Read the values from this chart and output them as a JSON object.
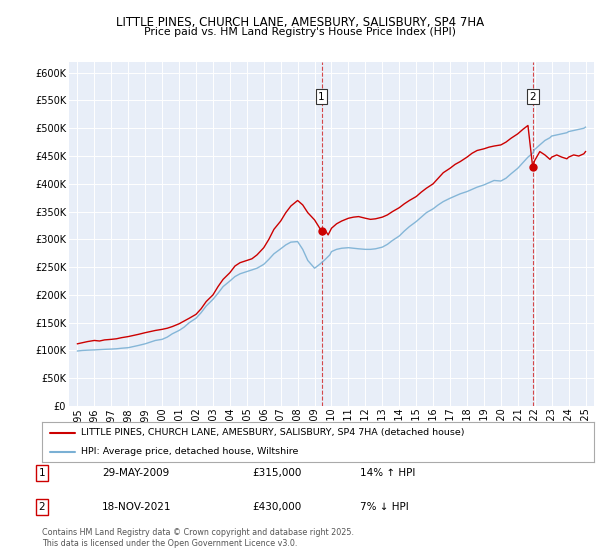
{
  "title": "LITTLE PINES, CHURCH LANE, AMESBURY, SALISBURY, SP4 7HA",
  "subtitle": "Price paid vs. HM Land Registry's House Price Index (HPI)",
  "red_label": "LITTLE PINES, CHURCH LANE, AMESBURY, SALISBURY, SP4 7HA (detached house)",
  "blue_label": "HPI: Average price, detached house, Wiltshire",
  "annotation1_date": "29-MAY-2009",
  "annotation1_price": "£315,000",
  "annotation1_hpi": "14% ↑ HPI",
  "annotation2_date": "18-NOV-2021",
  "annotation2_price": "£430,000",
  "annotation2_hpi": "7% ↓ HPI",
  "vline1_x": 2009.41,
  "vline2_x": 2021.88,
  "point1_x": 2009.41,
  "point1_y": 315000,
  "point2_x": 2021.88,
  "point2_y": 430000,
  "red_color": "#cc0000",
  "blue_color": "#7ab0d4",
  "background_color": "#e8eef8",
  "grid_color": "#ffffff",
  "ylim": [
    0,
    620000
  ],
  "xlim": [
    1994.5,
    2025.5
  ],
  "footer": "Contains HM Land Registry data © Crown copyright and database right 2025.\nThis data is licensed under the Open Government Licence v3.0.",
  "red_line_x": [
    1995.0,
    1995.3,
    1995.6,
    1996.0,
    1996.3,
    1996.6,
    1997.0,
    1997.3,
    1997.6,
    1998.0,
    1998.3,
    1998.6,
    1999.0,
    1999.3,
    1999.6,
    2000.0,
    2000.3,
    2000.6,
    2001.0,
    2001.3,
    2001.6,
    2002.0,
    2002.3,
    2002.6,
    2003.0,
    2003.3,
    2003.6,
    2004.0,
    2004.3,
    2004.6,
    2005.0,
    2005.3,
    2005.6,
    2006.0,
    2006.3,
    2006.6,
    2007.0,
    2007.3,
    2007.6,
    2008.0,
    2008.3,
    2008.6,
    2009.0,
    2009.41,
    2009.6,
    2009.8,
    2010.0,
    2010.3,
    2010.6,
    2011.0,
    2011.3,
    2011.6,
    2012.0,
    2012.3,
    2012.6,
    2013.0,
    2013.3,
    2013.6,
    2014.0,
    2014.3,
    2014.6,
    2015.0,
    2015.3,
    2015.6,
    2016.0,
    2016.3,
    2016.6,
    2017.0,
    2017.3,
    2017.6,
    2018.0,
    2018.3,
    2018.6,
    2019.0,
    2019.3,
    2019.6,
    2020.0,
    2020.3,
    2020.6,
    2021.0,
    2021.3,
    2021.6,
    2021.88,
    2022.0,
    2022.3,
    2022.6,
    2022.9,
    2023.0,
    2023.3,
    2023.6,
    2023.9,
    2024.0,
    2024.3,
    2024.6,
    2024.9,
    2025.0
  ],
  "red_line_y": [
    112000,
    114000,
    116000,
    118000,
    117000,
    119000,
    120000,
    121000,
    123000,
    125000,
    127000,
    129000,
    132000,
    134000,
    136000,
    138000,
    140000,
    143000,
    148000,
    153000,
    158000,
    165000,
    175000,
    188000,
    200000,
    215000,
    228000,
    240000,
    252000,
    258000,
    262000,
    265000,
    272000,
    285000,
    300000,
    318000,
    333000,
    348000,
    360000,
    370000,
    362000,
    348000,
    335000,
    315000,
    318000,
    308000,
    320000,
    328000,
    333000,
    338000,
    340000,
    341000,
    338000,
    336000,
    337000,
    340000,
    344000,
    350000,
    357000,
    364000,
    370000,
    377000,
    385000,
    392000,
    400000,
    410000,
    420000,
    428000,
    435000,
    440000,
    448000,
    455000,
    460000,
    463000,
    466000,
    468000,
    470000,
    475000,
    482000,
    490000,
    498000,
    505000,
    430000,
    442000,
    458000,
    452000,
    444000,
    448000,
    452000,
    448000,
    445000,
    448000,
    452000,
    450000,
    454000,
    458000
  ],
  "blue_line_x": [
    1995.0,
    1995.3,
    1995.6,
    1996.0,
    1996.3,
    1996.6,
    1997.0,
    1997.3,
    1997.6,
    1998.0,
    1998.3,
    1998.6,
    1999.0,
    1999.3,
    1999.6,
    2000.0,
    2000.3,
    2000.6,
    2001.0,
    2001.3,
    2001.6,
    2002.0,
    2002.3,
    2002.6,
    2003.0,
    2003.3,
    2003.6,
    2004.0,
    2004.3,
    2004.6,
    2005.0,
    2005.3,
    2005.6,
    2006.0,
    2006.3,
    2006.6,
    2007.0,
    2007.3,
    2007.6,
    2008.0,
    2008.3,
    2008.6,
    2009.0,
    2009.3,
    2009.6,
    2009.9,
    2010.0,
    2010.3,
    2010.6,
    2011.0,
    2011.3,
    2011.6,
    2012.0,
    2012.3,
    2012.6,
    2013.0,
    2013.3,
    2013.6,
    2014.0,
    2014.3,
    2014.6,
    2015.0,
    2015.3,
    2015.6,
    2016.0,
    2016.3,
    2016.6,
    2017.0,
    2017.3,
    2017.6,
    2018.0,
    2018.3,
    2018.6,
    2019.0,
    2019.3,
    2019.6,
    2020.0,
    2020.3,
    2020.6,
    2021.0,
    2021.3,
    2021.6,
    2021.88,
    2022.0,
    2022.3,
    2022.6,
    2022.9,
    2023.0,
    2023.3,
    2023.6,
    2023.9,
    2024.0,
    2024.3,
    2024.6,
    2024.9,
    2025.0
  ],
  "blue_line_y": [
    99000,
    100000,
    100500,
    101000,
    101500,
    102000,
    102500,
    103000,
    104000,
    105000,
    107000,
    109000,
    112000,
    115000,
    118000,
    120000,
    124000,
    130000,
    136000,
    142000,
    150000,
    158000,
    168000,
    180000,
    192000,
    203000,
    215000,
    225000,
    233000,
    238000,
    242000,
    245000,
    248000,
    255000,
    264000,
    274000,
    283000,
    290000,
    295000,
    296000,
    282000,
    262000,
    248000,
    255000,
    263000,
    272000,
    278000,
    282000,
    284000,
    285000,
    284000,
    283000,
    282000,
    282000,
    283000,
    286000,
    291000,
    298000,
    306000,
    315000,
    323000,
    332000,
    340000,
    348000,
    355000,
    362000,
    368000,
    374000,
    378000,
    382000,
    386000,
    390000,
    394000,
    398000,
    402000,
    406000,
    405000,
    410000,
    418000,
    428000,
    438000,
    448000,
    455000,
    462000,
    470000,
    478000,
    483000,
    486000,
    488000,
    490000,
    492000,
    494000,
    496000,
    498000,
    500000,
    502000
  ]
}
